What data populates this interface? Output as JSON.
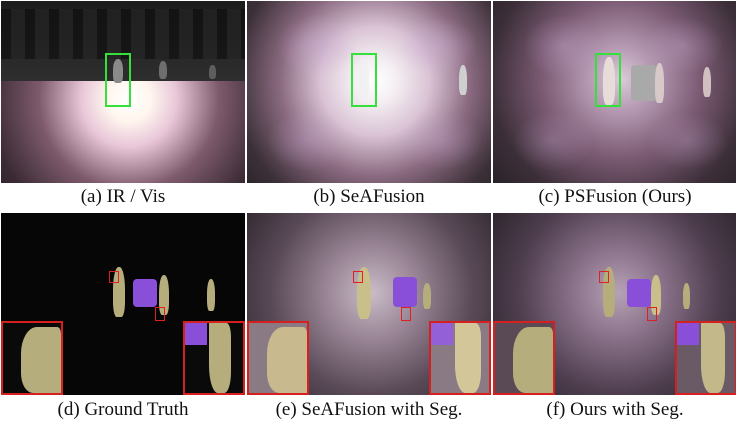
{
  "figure": {
    "panels": [
      {
        "id": "a",
        "caption": "(a)  IR / Vis",
        "variant": "ir-vis"
      },
      {
        "id": "b",
        "caption": "(b)  SeAFusion",
        "variant": "fusion"
      },
      {
        "id": "c",
        "caption": "(c)  PSFusion (Ours)",
        "variant": "fusion-ours"
      },
      {
        "id": "d",
        "caption": "(d)  Ground Truth",
        "variant": "gt"
      },
      {
        "id": "e",
        "caption": "(e)  SeAFusion with Seg.",
        "variant": "seg"
      },
      {
        "id": "f",
        "caption": "(f)  Ours with Seg.",
        "variant": "seg-ours"
      }
    ]
  },
  "colors": {
    "highlight_box": "#35e03a",
    "zoom_box": "#e02020",
    "segment_person": "#b6ad7c",
    "segment_car": "#8a4fd8"
  }
}
